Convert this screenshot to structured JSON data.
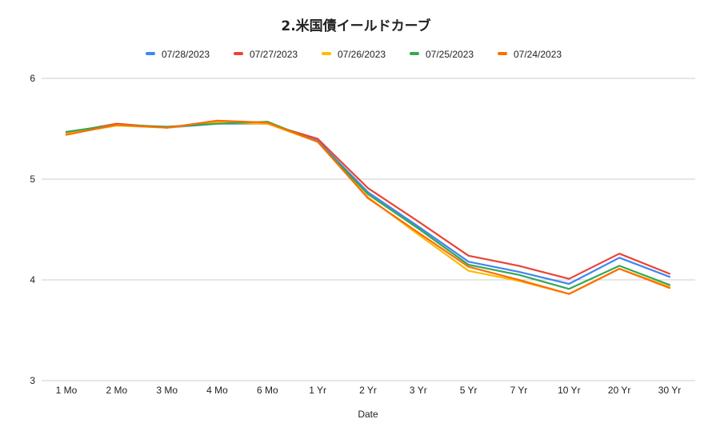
{
  "chart_data": {
    "type": "line",
    "title": "2.米国債イールドカーブ",
    "xlabel": "Date",
    "ylabel": "",
    "ylim": [
      3,
      6
    ],
    "yticks": [
      3,
      4,
      5,
      6
    ],
    "grid": true,
    "legend_position": "top",
    "categories": [
      "1 Mo",
      "2 Mo",
      "3 Mo",
      "4 Mo",
      "6 Mo",
      "1 Yr",
      "2 Yr",
      "3 Yr",
      "5 Yr",
      "7 Yr",
      "10 Yr",
      "20 Yr",
      "30 Yr"
    ],
    "series": [
      {
        "name": "07/28/2023",
        "color": "#4285f4",
        "values": [
          5.46,
          5.54,
          5.51,
          5.55,
          5.55,
          5.38,
          4.87,
          4.53,
          4.18,
          4.08,
          3.96,
          4.22,
          4.03
        ]
      },
      {
        "name": "07/27/2023",
        "color": "#ea4335",
        "values": [
          5.46,
          5.55,
          5.51,
          5.56,
          5.55,
          5.4,
          4.91,
          4.58,
          4.24,
          4.14,
          4.01,
          4.26,
          4.06
        ]
      },
      {
        "name": "07/26/2023",
        "color": "#fbbc04",
        "values": [
          5.45,
          5.53,
          5.51,
          5.56,
          5.55,
          5.37,
          4.82,
          4.45,
          4.09,
          3.99,
          3.86,
          4.11,
          3.93
        ]
      },
      {
        "name": "07/25/2023",
        "color": "#34a853",
        "values": [
          5.47,
          5.54,
          5.52,
          5.55,
          5.57,
          5.37,
          4.85,
          4.51,
          4.15,
          4.05,
          3.91,
          4.14,
          3.95
        ]
      },
      {
        "name": "07/24/2023",
        "color": "#ff6d01",
        "values": [
          5.44,
          5.54,
          5.51,
          5.58,
          5.56,
          5.37,
          4.81,
          4.47,
          4.13,
          4.0,
          3.86,
          4.11,
          3.92
        ]
      }
    ]
  }
}
